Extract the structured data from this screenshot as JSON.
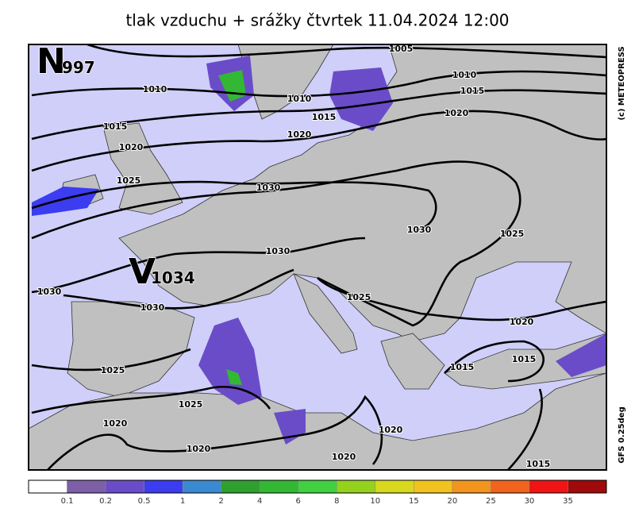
{
  "title": "tlak vzduchu + srážky čtvrtek 11.04.2024 12:00",
  "copyright": "(c) METEOPRESS",
  "model": "GFS 0.25deg",
  "centers": [
    {
      "letter": "N",
      "value": 997
    },
    {
      "letter": "V",
      "value": 1034
    }
  ],
  "isobar_labels": [
    1005,
    1010,
    1010,
    1010,
    1015,
    1015,
    1015,
    1020,
    1020,
    1020,
    1025,
    1030,
    1030,
    1025,
    1030,
    1030,
    1030,
    1025,
    1020,
    1025,
    1015,
    1015,
    1025,
    1020,
    1020,
    1020,
    1020,
    1015
  ],
  "legend": {
    "labels": [
      0.1,
      0.2,
      0.5,
      1,
      2,
      4,
      6,
      8,
      10,
      15,
      20,
      25,
      30,
      35
    ],
    "colors": [
      "#ffffff",
      "#7d5fa8",
      "#6a4cc8",
      "#3c3cf0",
      "#3a8ad2",
      "#2ea02e",
      "#33b833",
      "#40d040",
      "#95d21e",
      "#d8d81e",
      "#f2c21e",
      "#f2941e",
      "#f2641e",
      "#f01414",
      "#a00a0a"
    ]
  }
}
